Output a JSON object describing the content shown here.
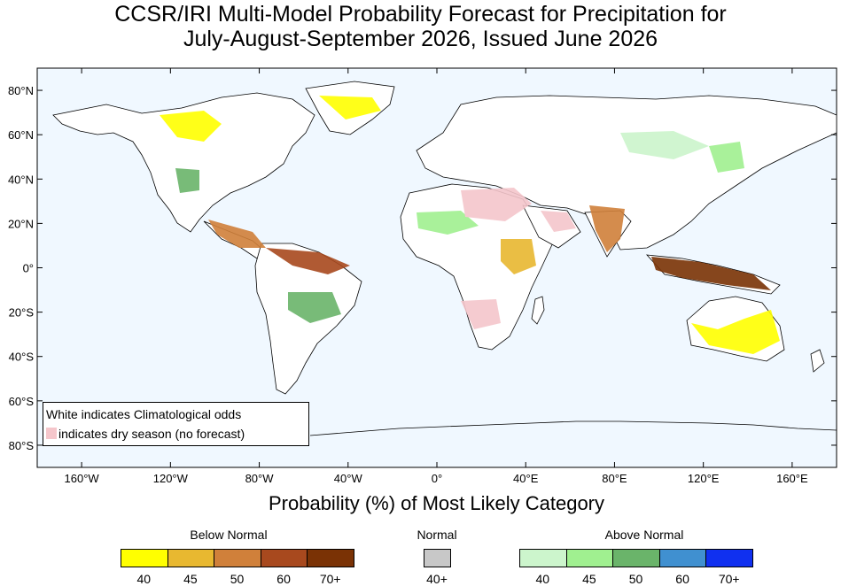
{
  "title": {
    "line1": "CCSR/IRI Multi-Model Probability Forecast for Precipitation for",
    "line2": "July-August-September 2026, Issued June 2026"
  },
  "axes": {
    "lat_labels": [
      "80°N",
      "60°N",
      "40°N",
      "20°N",
      "0°",
      "20°S",
      "40°S",
      "60°S",
      "80°S"
    ],
    "lon_labels": [
      "160°W",
      "120°W",
      "80°W",
      "40°W",
      "0°",
      "40°E",
      "80°E",
      "120°E",
      "160°E"
    ]
  },
  "note": {
    "line1": "White indicates Climatological odds",
    "line2": "indicates dry season (no forecast)",
    "dry_color": "#f5c6cb"
  },
  "subtitle": "Probability (%) of Most Likely Category",
  "legend": {
    "below": {
      "title": "Below Normal",
      "ticks": [
        "40",
        "45",
        "50",
        "60",
        "70+"
      ],
      "colors": [
        "#ffff00",
        "#e8b830",
        "#d0803a",
        "#a8491e",
        "#7a3205"
      ]
    },
    "normal": {
      "title": "Normal",
      "ticks": [
        "40+"
      ],
      "colors": [
        "#c8c8c8"
      ]
    },
    "above": {
      "title": "Above Normal",
      "ticks": [
        "40",
        "45",
        "50",
        "60",
        "70+"
      ],
      "colors": [
        "#ccf5cc",
        "#a0f090",
        "#6ab46a",
        "#4090d0",
        "#1030f0"
      ]
    }
  },
  "colors": {
    "ocean": "#f0f8ff",
    "land": "#ffffff",
    "border": "#000000"
  }
}
